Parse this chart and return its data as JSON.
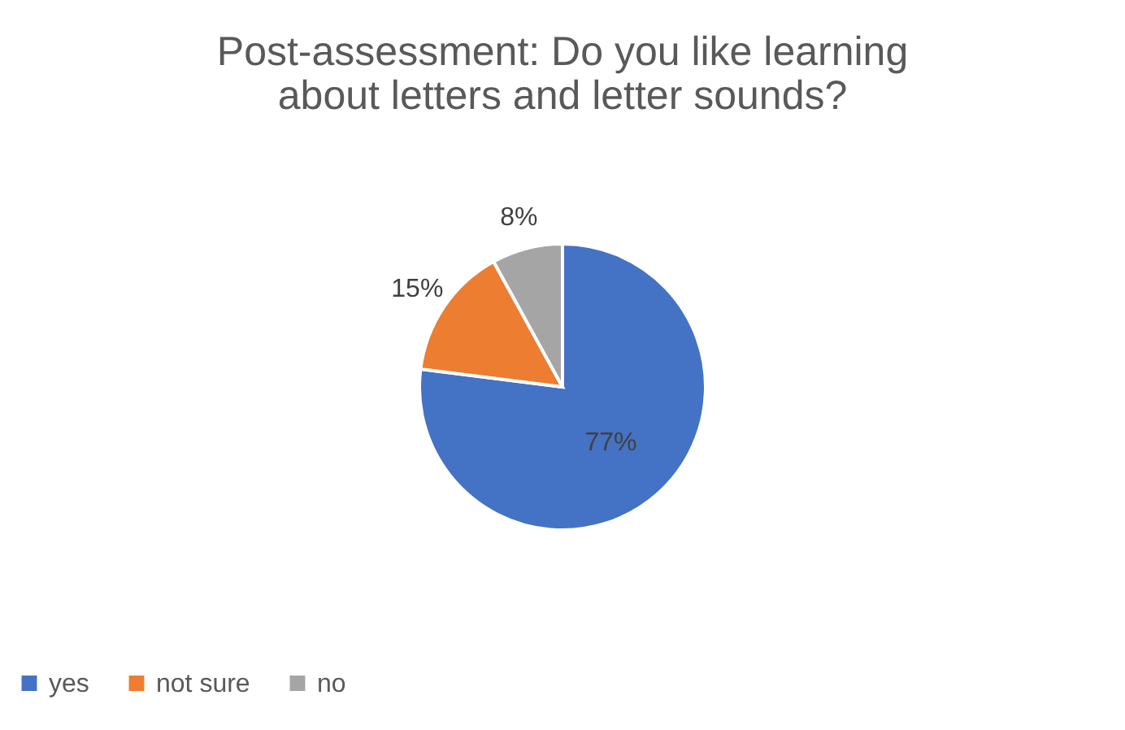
{
  "chart_data": {
    "type": "pie",
    "title": "Post-assessment: Do you like learning about letters and letter sounds?",
    "categories": [
      "yes",
      "not sure",
      "no"
    ],
    "values": [
      77,
      15,
      8
    ],
    "colors": [
      "#4472c4",
      "#ed7d31",
      "#a5a5a5"
    ],
    "value_labels": [
      "77%",
      "15%",
      "8%"
    ],
    "legend": "bottom"
  }
}
